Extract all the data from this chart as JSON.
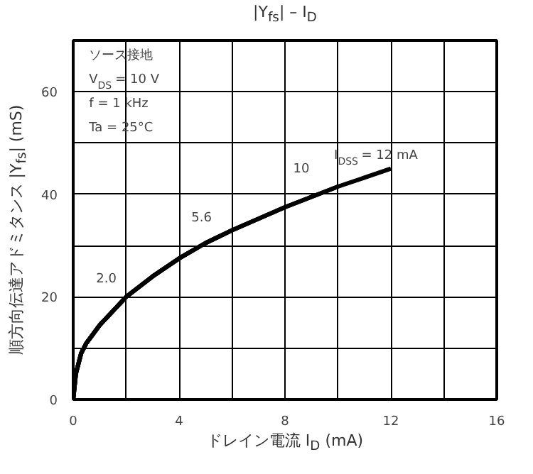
{
  "chart_data": {
    "type": "line",
    "title": "|Y$_{fs}$| – I$_{D}$",
    "xlabel": "ドレイン電流 I$_{D}$ (mA)",
    "ylabel": "順方向伝達アドミタンス |Y$_{fs}$| (mS)",
    "xlim": [
      0,
      16
    ],
    "ylim": [
      0,
      70
    ],
    "xticks": [
      0,
      {
        "value": 2,
        "label": null
      },
      4,
      {
        "value": 6,
        "label": null
      },
      8,
      {
        "value": 10,
        "label": null
      },
      12,
      {
        "value": 14,
        "label": null
      },
      16
    ],
    "yticks": [
      0,
      {
        "value": 10,
        "label": null
      },
      20,
      {
        "value": 30,
        "label": null
      },
      40,
      {
        "value": 50,
        "label": null
      },
      60,
      {
        "value": 70,
        "label": null
      }
    ],
    "grid": true,
    "marker": "none",
    "line_style": "solid",
    "series": [
      {
        "name": "2.0",
        "color": "#000000",
        "x": [
          0,
          0.1,
          0.3,
          0.5,
          1,
          2
        ],
        "values": [
          0,
          5,
          9,
          11,
          14.5,
          20
        ]
      },
      {
        "name": "5.6",
        "color": "#000000",
        "x": [
          0,
          0.1,
          0.3,
          0.5,
          1,
          2,
          3,
          4,
          5,
          5.6
        ],
        "values": [
          0,
          5,
          9,
          11,
          14.5,
          20,
          24,
          27.5,
          30.5,
          32
        ]
      },
      {
        "name": "10",
        "color": "#000000",
        "x": [
          0,
          0.1,
          0.3,
          0.5,
          1,
          2,
          3,
          4,
          5,
          6,
          8,
          10
        ],
        "values": [
          0,
          5,
          9,
          11,
          14.5,
          20,
          24,
          27.5,
          30.5,
          33,
          37.5,
          41.5
        ]
      },
      {
        "name": "I$_{DSS}$ = 12 mA",
        "color": "#000000",
        "x": [
          0,
          0.1,
          0.3,
          0.5,
          1,
          2,
          3,
          4,
          5,
          6,
          8,
          10,
          12
        ],
        "values": [
          0,
          5,
          9,
          11,
          14.5,
          20,
          24,
          27.5,
          30.5,
          33,
          37.5,
          41.5,
          45
        ]
      }
    ],
    "annotations": [
      "ソース接地",
      "V$_{DS}$ = 10 V",
      "f = 1 kHz",
      "Ta = 25°C"
    ]
  }
}
